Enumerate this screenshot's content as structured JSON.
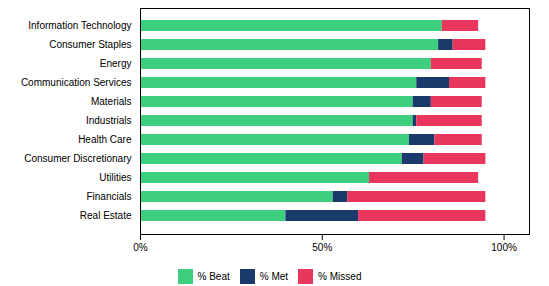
{
  "chart_data": {
    "type": "bar",
    "orientation": "horizontal",
    "stacked": true,
    "categories": [
      "Information Technology",
      "Consumer Staples",
      "Energy",
      "Communication Services",
      "Materials",
      "Industrials",
      "Health Care",
      "Consumer Discretionary",
      "Utilities",
      "Financials",
      "Real Estate"
    ],
    "series": [
      {
        "name": "% Beat",
        "color": "#3ecf7e",
        "values": [
          83,
          82,
          80,
          76,
          75,
          75,
          74,
          72,
          63,
          53,
          40
        ]
      },
      {
        "name": "% Met",
        "color": "#1a3a6b",
        "values": [
          0,
          4,
          0,
          9,
          5,
          1,
          7,
          6,
          0,
          4,
          20
        ]
      },
      {
        "name": "% Missed",
        "color": "#e8365d",
        "values": [
          10,
          9,
          14,
          10,
          14,
          18,
          13,
          17,
          30,
          38,
          35
        ]
      }
    ],
    "xlim": [
      0,
      107
    ],
    "xticks": [
      {
        "value": 0,
        "label": "0%"
      },
      {
        "value": 50,
        "label": "50%"
      },
      {
        "value": 100,
        "label": "100%"
      }
    ],
    "grid": false,
    "legend": "bottom"
  }
}
